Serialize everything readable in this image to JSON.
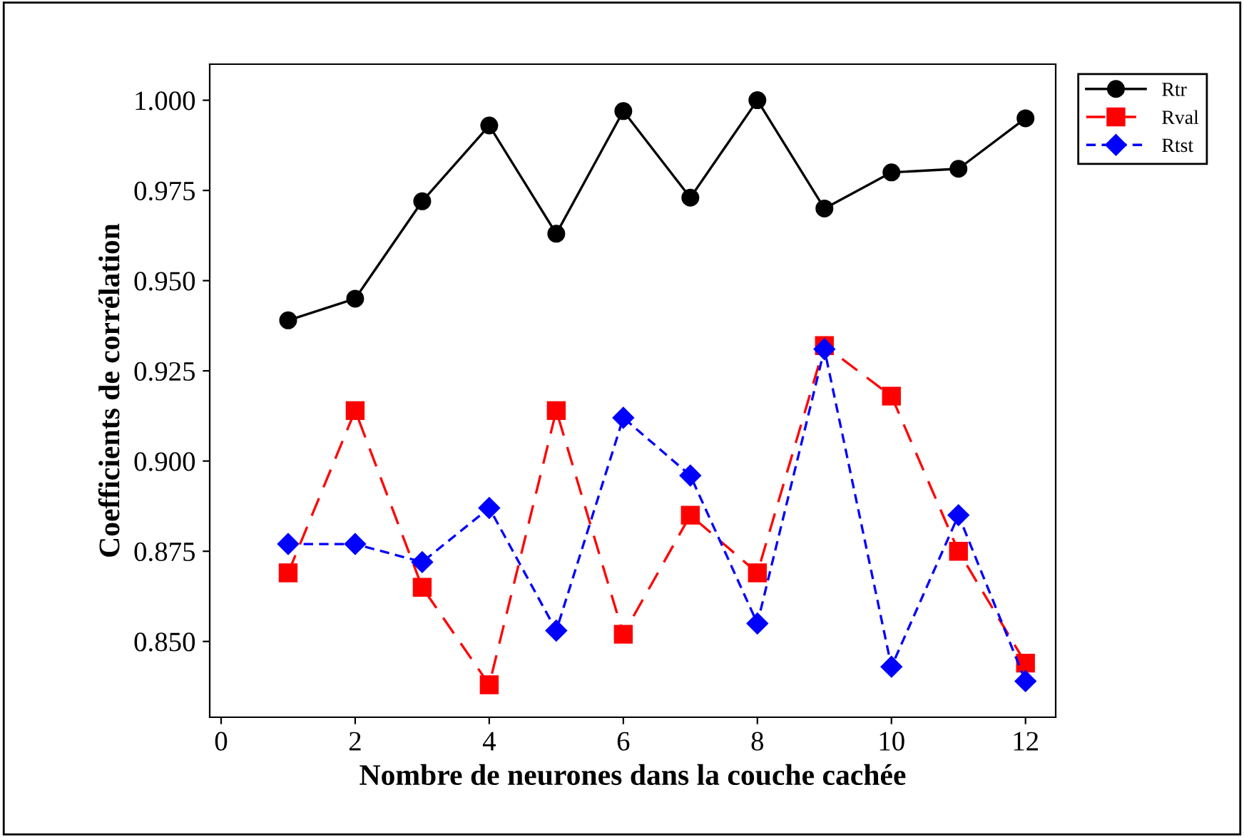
{
  "chart_data": {
    "type": "line",
    "xlabel": "Nombre de neurones dans la couche cachée",
    "ylabel": "Coefficients de corrélation",
    "x": [
      1,
      2,
      3,
      4,
      5,
      6,
      7,
      8,
      9,
      10,
      11,
      12
    ],
    "series": [
      {
        "name": "Rtr",
        "color": "#000000",
        "marker": "circle",
        "line_style": "solid",
        "values": [
          0.939,
          0.945,
          0.972,
          0.993,
          0.963,
          0.997,
          0.973,
          1.0,
          0.97,
          0.98,
          0.981,
          0.995
        ]
      },
      {
        "name": "Rval",
        "color": "#ff0000",
        "marker": "square",
        "line_style": "dashed",
        "values": [
          0.869,
          0.914,
          0.865,
          0.838,
          0.914,
          0.852,
          0.885,
          0.869,
          0.932,
          0.918,
          0.875,
          0.844
        ]
      },
      {
        "name": "Rtst",
        "color": "#0000ff",
        "marker": "diamond",
        "line_style": "dotted",
        "values": [
          0.877,
          0.877,
          0.872,
          0.887,
          0.853,
          0.912,
          0.896,
          0.855,
          0.931,
          0.843,
          0.885,
          0.839
        ]
      }
    ],
    "xlim": [
      -0.17,
      12.45
    ],
    "xticks": [
      0,
      2,
      4,
      6,
      8,
      10,
      12
    ],
    "ylim": [
      0.829,
      1.01
    ],
    "yticks": [
      {
        "value": 0.85,
        "label": "0.850"
      },
      {
        "value": 0.875,
        "label": "0.875"
      },
      {
        "value": 0.9,
        "label": "0.900"
      },
      {
        "value": 0.925,
        "label": "0.925"
      },
      {
        "value": 0.95,
        "label": "0.950"
      },
      {
        "value": 0.975,
        "label": "0.975"
      },
      {
        "value": 1.0,
        "label": "1.000"
      }
    ],
    "grid": false,
    "legend": "top right"
  }
}
